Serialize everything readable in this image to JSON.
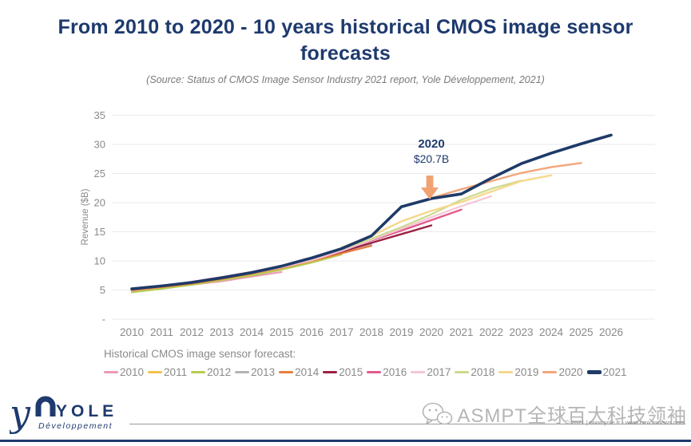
{
  "title": "From 2010 to 2020 - 10 years historical CMOS image sensor forecasts",
  "subtitle": "(Source: Status of CMOS Image Sensor Industry 2021 report, Yole Développement, 2021)",
  "colors": {
    "title_navy": "#1e3a6e",
    "axis_gray": "#8a8a8a",
    "gridline": "#eaeaea",
    "arrow_salmon": "#f0a273",
    "watermark_gray": "#b5b5b5"
  },
  "chart_data": {
    "type": "line",
    "title": "",
    "xlabel": "",
    "ylabel": "Revenue ($B)",
    "ylim": [
      0,
      35
    ],
    "grid": true,
    "legend_position": "bottom",
    "legend_title": "Historical CMOS image sensor forecast:",
    "yticks": [
      {
        "value": 0,
        "label": "-"
      },
      {
        "value": 5,
        "label": "5"
      },
      {
        "value": 10,
        "label": "10"
      },
      {
        "value": 15,
        "label": "15"
      },
      {
        "value": 20,
        "label": "20"
      },
      {
        "value": 25,
        "label": "25"
      },
      {
        "value": 30,
        "label": "30"
      },
      {
        "value": 35,
        "label": "35"
      }
    ],
    "xticks": [
      "2010",
      "2011",
      "2012",
      "2013",
      "2014",
      "2015",
      "2016",
      "2017",
      "2018",
      "2019",
      "2020",
      "2021",
      "2022",
      "2023",
      "2024",
      "2025",
      "2026"
    ],
    "annotation": {
      "year_label": "2020",
      "value_label": "$20.7B",
      "year": 2020,
      "value": 20.7
    },
    "series": [
      {
        "name": "2010",
        "color": "#ec9ab5",
        "width": 2.2,
        "points": [
          [
            2010,
            4.8
          ],
          [
            2011,
            5.3
          ],
          [
            2012,
            5.9
          ],
          [
            2013,
            6.5
          ],
          [
            2014,
            7.3
          ],
          [
            2015,
            8.1
          ]
        ]
      },
      {
        "name": "2011",
        "color": "#f1c24d",
        "width": 2.2,
        "points": [
          [
            2010,
            5.0
          ],
          [
            2011,
            5.5
          ],
          [
            2012,
            6.2
          ],
          [
            2013,
            7.0
          ],
          [
            2014,
            7.9
          ],
          [
            2015,
            8.9
          ],
          [
            2016,
            10.0
          ]
        ]
      },
      {
        "name": "2012",
        "color": "#b7cc4f",
        "width": 2.2,
        "points": [
          [
            2010,
            4.6
          ],
          [
            2011,
            5.2
          ],
          [
            2012,
            5.9
          ],
          [
            2013,
            6.7
          ],
          [
            2014,
            7.5
          ],
          [
            2015,
            8.5
          ],
          [
            2016,
            9.7
          ],
          [
            2017,
            11.1
          ]
        ]
      },
      {
        "name": "2013",
        "color": "#b3b3b8",
        "width": 2.2,
        "points": [
          [
            2010,
            5.1
          ],
          [
            2011,
            5.6
          ],
          [
            2012,
            6.3
          ],
          [
            2013,
            7.1
          ],
          [
            2014,
            8.0
          ],
          [
            2015,
            9.0
          ],
          [
            2016,
            10.2
          ],
          [
            2017,
            11.5
          ],
          [
            2018,
            12.9
          ]
        ]
      },
      {
        "name": "2014",
        "color": "#e87d3c",
        "width": 2.2,
        "points": [
          [
            2010,
            5.0
          ],
          [
            2011,
            5.5
          ],
          [
            2012,
            6.1
          ],
          [
            2013,
            6.9
          ],
          [
            2014,
            7.8
          ],
          [
            2015,
            8.8
          ],
          [
            2016,
            10.0
          ],
          [
            2017,
            11.3
          ],
          [
            2018,
            12.6
          ]
        ]
      },
      {
        "name": "2015",
        "color": "#9b2142",
        "width": 2.4,
        "points": [
          [
            2010,
            5.1
          ],
          [
            2011,
            5.7
          ],
          [
            2012,
            6.3
          ],
          [
            2013,
            7.1
          ],
          [
            2014,
            8.0
          ],
          [
            2015,
            9.0
          ],
          [
            2016,
            10.2
          ],
          [
            2017,
            11.6
          ],
          [
            2018,
            13.1
          ],
          [
            2019,
            14.6
          ],
          [
            2020,
            16.1
          ]
        ]
      },
      {
        "name": "2016",
        "color": "#e25a8b",
        "width": 2.4,
        "points": [
          [
            2010,
            5.2
          ],
          [
            2011,
            5.7
          ],
          [
            2012,
            6.4
          ],
          [
            2013,
            7.2
          ],
          [
            2014,
            8.1
          ],
          [
            2015,
            9.1
          ],
          [
            2016,
            10.4
          ],
          [
            2017,
            11.9
          ],
          [
            2018,
            13.5
          ],
          [
            2019,
            15.2
          ],
          [
            2020,
            17.0
          ],
          [
            2021,
            18.8
          ]
        ]
      },
      {
        "name": "2017",
        "color": "#f4c6d6",
        "width": 2.2,
        "points": [
          [
            2014,
            7.9
          ],
          [
            2015,
            8.9
          ],
          [
            2016,
            10.1
          ],
          [
            2017,
            11.7
          ],
          [
            2018,
            13.6
          ],
          [
            2019,
            15.5
          ],
          [
            2020,
            17.5
          ],
          [
            2021,
            19.4
          ],
          [
            2022,
            21.1
          ]
        ]
      },
      {
        "name": "2018",
        "color": "#ccd98f",
        "width": 2.2,
        "points": [
          [
            2016,
            10.5
          ],
          [
            2017,
            12.0
          ],
          [
            2018,
            13.8
          ],
          [
            2019,
            15.8
          ],
          [
            2020,
            18.0
          ],
          [
            2021,
            20.5
          ],
          [
            2022,
            22.4
          ],
          [
            2023,
            23.8
          ]
        ]
      },
      {
        "name": "2019",
        "color": "#f6d88e",
        "width": 2.4,
        "points": [
          [
            2017,
            12.3
          ],
          [
            2018,
            14.3
          ],
          [
            2019,
            16.8
          ],
          [
            2020,
            18.6
          ],
          [
            2021,
            20.1
          ],
          [
            2022,
            21.9
          ],
          [
            2023,
            23.7
          ],
          [
            2024,
            24.7
          ]
        ]
      },
      {
        "name": "2020",
        "color": "#f2a67b",
        "width": 2.4,
        "points": [
          [
            2019,
            19.3
          ],
          [
            2020,
            20.8
          ],
          [
            2021,
            22.3
          ],
          [
            2022,
            23.7
          ],
          [
            2023,
            25.1
          ],
          [
            2024,
            26.1
          ],
          [
            2025,
            26.8
          ]
        ]
      },
      {
        "name": "2021",
        "color": "#1e3a68",
        "width": 3.6,
        "points": [
          [
            2010,
            5.2
          ],
          [
            2011,
            5.7
          ],
          [
            2012,
            6.3
          ],
          [
            2013,
            7.1
          ],
          [
            2014,
            8.0
          ],
          [
            2015,
            9.1
          ],
          [
            2016,
            10.5
          ],
          [
            2017,
            12.1
          ],
          [
            2018,
            14.3
          ],
          [
            2019,
            19.3
          ],
          [
            2020,
            20.7
          ],
          [
            2021,
            21.5
          ],
          [
            2022,
            24.2
          ],
          [
            2023,
            26.7
          ],
          [
            2024,
            28.5
          ],
          [
            2025,
            30.1
          ],
          [
            2026,
            31.6
          ]
        ]
      }
    ]
  },
  "footer": {
    "logo_main": "YOLE",
    "logo_sub": "Développement",
    "watermark_text": "ASMPT全球百大科技领袖",
    "copyright": "© 2021 | www.yole.fr - www.i-micronews.com"
  }
}
